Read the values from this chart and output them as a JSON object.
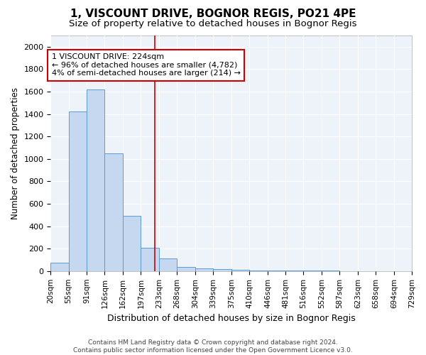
{
  "title": "1, VISCOUNT DRIVE, BOGNOR REGIS, PO21 4PE",
  "subtitle": "Size of property relative to detached houses in Bognor Regis",
  "xlabel": "Distribution of detached houses by size in Bognor Regis",
  "ylabel": "Number of detached properties",
  "bin_edges": [
    20,
    55,
    91,
    126,
    162,
    197,
    233,
    268,
    304,
    339,
    375,
    410,
    446,
    481,
    516,
    552,
    587,
    623,
    658,
    694,
    729
  ],
  "bar_heights": [
    75,
    1420,
    1620,
    1050,
    490,
    205,
    110,
    35,
    25,
    20,
    10,
    8,
    5,
    5,
    3,
    3,
    2,
    2,
    1,
    1
  ],
  "bar_color": "#c5d8f0",
  "bar_edge_color": "#5b9bd5",
  "vline_x": 224,
  "vline_color": "#cc0000",
  "annotation_text": "1 VISCOUNT DRIVE: 224sqm\n← 96% of detached houses are smaller (4,782)\n4% of semi-detached houses are larger (214) →",
  "annotation_box_color": "white",
  "annotation_box_edge_color": "#cc0000",
  "ylim": [
    0,
    2100
  ],
  "yticks": [
    0,
    200,
    400,
    600,
    800,
    1000,
    1200,
    1400,
    1600,
    1800,
    2000
  ],
  "tick_labels": [
    "20sqm",
    "55sqm",
    "91sqm",
    "126sqm",
    "162sqm",
    "197sqm",
    "233sqm",
    "268sqm",
    "304sqm",
    "339sqm",
    "375sqm",
    "410sqm",
    "446sqm",
    "481sqm",
    "516sqm",
    "552sqm",
    "587sqm",
    "623sqm",
    "658sqm",
    "694sqm",
    "729sqm"
  ],
  "footer_text": "Contains HM Land Registry data © Crown copyright and database right 2024.\nContains public sector information licensed under the Open Government Licence v3.0.",
  "bg_color": "#eef2f9",
  "grid_color": "#ffffff",
  "title_fontsize": 11,
  "subtitle_fontsize": 9.5,
  "xlabel_fontsize": 9,
  "ylabel_fontsize": 8.5,
  "tick_fontsize": 7.5,
  "annotation_fontsize": 8,
  "footer_fontsize": 6.5
}
